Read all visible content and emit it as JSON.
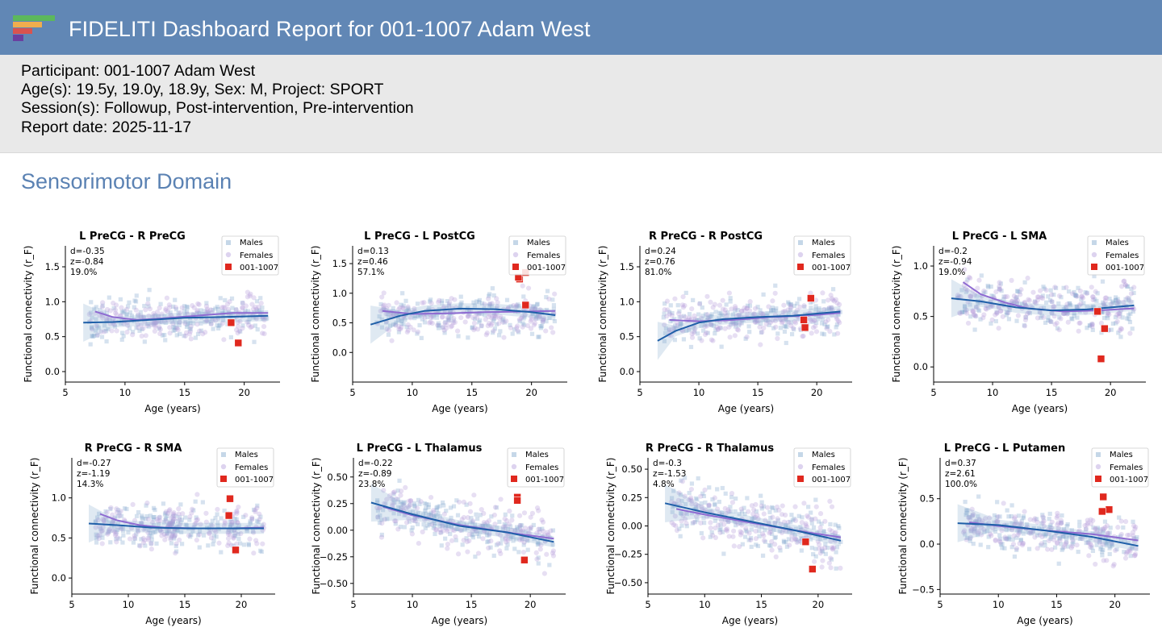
{
  "header": {
    "title": "FIDELITI Dashboard Report for 001-1007 Adam West",
    "logo_colors": [
      "#5cb85c",
      "#f0ad4e",
      "#d9534f",
      "#6a3fa0"
    ]
  },
  "participant_info": {
    "participant": "Participant: 001-1007 Adam West",
    "ages": "Age(s): 19.5y, 19.0y, 18.9y, Sex: M, Project: SPORT",
    "sessions": "Session(s): Followup, Post-intervention, Pre-intervention",
    "report_date": "Report date: 2025-11-17"
  },
  "section": {
    "title": "Sensorimotor Domain"
  },
  "legend": {
    "males": "Males",
    "females": "Females",
    "participant": "001-1007"
  },
  "colors": {
    "males": "#7ea6cc",
    "females": "#b39ddb",
    "male_line": "#1f5fa8",
    "female_line": "#8e6bd1",
    "participant": "#e0281e",
    "warn": "#e0281e"
  },
  "chart_data": [
    {
      "type": "scatter",
      "title": "L PreCG - R PreCG",
      "xlabel": "Age (years)",
      "ylabel": "Functional connectivity (r_F)",
      "xlim": [
        5,
        23
      ],
      "ylim": [
        -0.15,
        1.8
      ],
      "xticks": [
        "5",
        "10",
        "15",
        "20"
      ],
      "yticks": [
        "0.0",
        "0.5",
        "1.0",
        "1.5"
      ],
      "stats": {
        "d": "d=-0.35",
        "z": "z=-0.84",
        "pct": "19.0%",
        "pct_warn": false
      },
      "cloud": {
        "y_start": 0.75,
        "y_end": 0.8,
        "spread": 0.27
      },
      "male_fit": {
        "x": [
          6.5,
          9,
          12,
          15,
          18,
          22
        ],
        "y": [
          0.7,
          0.71,
          0.74,
          0.77,
          0.78,
          0.8
        ]
      },
      "female_fit": {
        "x": [
          7.5,
          9,
          11,
          13,
          16,
          19,
          22
        ],
        "y": [
          0.86,
          0.78,
          0.74,
          0.76,
          0.8,
          0.84,
          0.84
        ]
      },
      "participant_points": [
        {
          "x": 18.9,
          "y": 0.7
        },
        {
          "x": 19.5,
          "y": 0.41
        }
      ]
    },
    {
      "type": "scatter",
      "title": "L PreCG - L PostCG",
      "xlabel": "Age (years)",
      "ylabel": "Functional connectivity (r_F)",
      "xlim": [
        5,
        23
      ],
      "ylim": [
        -0.5,
        1.8
      ],
      "xticks": [
        "5",
        "10",
        "15",
        "20"
      ],
      "yticks": [
        "0.0",
        "0.5",
        "1.0",
        "1.5"
      ],
      "stats": {
        "d": "d=0.13",
        "z": "z=0.46",
        "pct": "57.1%",
        "pct_warn": false
      },
      "cloud": {
        "y_start": 0.6,
        "y_end": 0.65,
        "spread": 0.32
      },
      "male_fit": {
        "x": [
          6.5,
          9,
          11,
          14,
          17,
          20,
          22
        ],
        "y": [
          0.47,
          0.62,
          0.7,
          0.74,
          0.73,
          0.68,
          0.63
        ]
      },
      "female_fit": {
        "x": [
          7.5,
          10,
          13,
          16,
          19,
          22
        ],
        "y": [
          0.7,
          0.65,
          0.66,
          0.68,
          0.69,
          0.7
        ]
      },
      "participant_points": [
        {
          "x": 19.0,
          "y": 1.24
        },
        {
          "x": 18.9,
          "y": 1.27
        },
        {
          "x": 19.5,
          "y": 1.35
        },
        {
          "x": 19.5,
          "y": 0.8
        }
      ]
    },
    {
      "type": "scatter",
      "title": "R PreCG - R PostCG",
      "xlabel": "Age (years)",
      "ylabel": "Functional connectivity (r_F)",
      "xlim": [
        5,
        23
      ],
      "ylim": [
        -0.15,
        1.8
      ],
      "xticks": [
        "5",
        "10",
        "15",
        "20"
      ],
      "yticks": [
        "0.0",
        "0.5",
        "1.0",
        "1.5"
      ],
      "stats": {
        "d": "d=0.24",
        "z": "z=0.76",
        "pct": "81.0%",
        "pct_warn": false
      },
      "cloud": {
        "y_start": 0.72,
        "y_end": 0.82,
        "spread": 0.3
      },
      "male_fit": {
        "x": [
          6.5,
          8,
          10,
          12,
          15,
          18,
          22
        ],
        "y": [
          0.44,
          0.58,
          0.7,
          0.75,
          0.78,
          0.8,
          0.86
        ]
      },
      "female_fit": {
        "x": [
          7.5,
          10,
          13,
          16,
          19,
          22
        ],
        "y": [
          0.74,
          0.72,
          0.74,
          0.78,
          0.8,
          0.84
        ]
      },
      "participant_points": [
        {
          "x": 18.9,
          "y": 0.74
        },
        {
          "x": 19.0,
          "y": 0.63
        },
        {
          "x": 19.5,
          "y": 1.05
        }
      ]
    },
    {
      "type": "scatter",
      "title": "L PreCG - L SMA",
      "xlabel": "Age (years)",
      "ylabel": "Functional connectivity (r_F)",
      "xlim": [
        5,
        23
      ],
      "ylim": [
        -0.15,
        1.2
      ],
      "xticks": [
        "5",
        "10",
        "15",
        "20"
      ],
      "yticks": [
        "0.0",
        "0.5",
        "1.0"
      ],
      "stats": {
        "d": "d=-0.2",
        "z": "z=-0.94",
        "pct": "19.0%",
        "pct_warn": false
      },
      "cloud": {
        "y_start": 0.65,
        "y_end": 0.58,
        "spread": 0.23
      },
      "male_fit": {
        "x": [
          6.5,
          9,
          12,
          15,
          18,
          22
        ],
        "y": [
          0.68,
          0.65,
          0.59,
          0.56,
          0.57,
          0.61
        ]
      },
      "female_fit": {
        "x": [
          7.5,
          9,
          11,
          13,
          16,
          19,
          22
        ],
        "y": [
          0.84,
          0.72,
          0.64,
          0.58,
          0.55,
          0.56,
          0.58
        ]
      },
      "participant_points": [
        {
          "x": 18.9,
          "y": 0.55
        },
        {
          "x": 19.5,
          "y": 0.38
        },
        {
          "x": 19.2,
          "y": 0.08
        }
      ]
    },
    {
      "type": "scatter",
      "title": "R PreCG - R SMA",
      "xlabel": "Age (years)",
      "ylabel": "Functional connectivity (r_F)",
      "xlim": [
        5,
        23
      ],
      "ylim": [
        -0.2,
        1.5
      ],
      "xticks": [
        "5",
        "10",
        "15",
        "20"
      ],
      "yticks": [
        "0.0",
        "0.5",
        "1.0"
      ],
      "stats": {
        "d": "d=-0.27",
        "z": "z=-1.19",
        "pct": "14.3%",
        "pct_warn": false
      },
      "cloud": {
        "y_start": 0.66,
        "y_end": 0.62,
        "spread": 0.26
      },
      "male_fit": {
        "x": [
          6.5,
          9,
          12,
          15,
          18,
          22
        ],
        "y": [
          0.68,
          0.66,
          0.63,
          0.62,
          0.62,
          0.62
        ]
      },
      "female_fit": {
        "x": [
          7.5,
          9,
          11,
          13,
          16,
          19,
          22
        ],
        "y": [
          0.8,
          0.72,
          0.66,
          0.63,
          0.62,
          0.62,
          0.63
        ]
      },
      "participant_points": [
        {
          "x": 19.0,
          "y": 0.99
        },
        {
          "x": 18.9,
          "y": 0.78
        },
        {
          "x": 19.5,
          "y": 0.35
        }
      ]
    },
    {
      "type": "scatter",
      "title": "L PreCG - L Thalamus",
      "xlabel": "Age (years)",
      "ylabel": "Functional connectivity (r_F)",
      "xlim": [
        5,
        23
      ],
      "ylim": [
        -0.6,
        0.68
      ],
      "xticks": [
        "5",
        "10",
        "15",
        "20"
      ],
      "yticks": [
        "0.50",
        "0.25",
        "0.00",
        "−0.25",
        "−0.50"
      ],
      "stats": {
        "d": "d=-0.22",
        "z": "z=-0.89",
        "pct": "23.8%",
        "pct_warn": false
      },
      "cloud": {
        "y_start": 0.22,
        "y_end": -0.1,
        "spread": 0.22
      },
      "male_fit": {
        "x": [
          6.5,
          10,
          14,
          18,
          22
        ],
        "y": [
          0.26,
          0.15,
          0.04,
          -0.02,
          -0.11
        ]
      },
      "female_fit": {
        "x": [
          7.5,
          10,
          14,
          18,
          22
        ],
        "y": [
          0.22,
          0.14,
          0.05,
          -0.02,
          -0.08
        ]
      },
      "participant_points": [
        {
          "x": 18.9,
          "y": 0.31
        },
        {
          "x": 18.9,
          "y": 0.28
        },
        {
          "x": 19.5,
          "y": -0.28
        }
      ]
    },
    {
      "type": "scatter",
      "title": "R PreCG - R Thalamus",
      "xlabel": "Age (years)",
      "ylabel": "Functional connectivity (r_F)",
      "xlim": [
        5,
        23
      ],
      "ylim": [
        -0.6,
        0.6
      ],
      "xticks": [
        "5",
        "10",
        "15",
        "20"
      ],
      "yticks": [
        "0.50",
        "0.25",
        "0.00",
        "−0.25",
        "−0.50"
      ],
      "stats": {
        "d": "d=-0.3",
        "z": "z=-1.53",
        "pct": "4.8%",
        "pct_warn": true
      },
      "cloud": {
        "y_start": 0.18,
        "y_end": -0.12,
        "spread": 0.22
      },
      "male_fit": {
        "x": [
          6.5,
          10,
          14,
          18,
          22
        ],
        "y": [
          0.2,
          0.12,
          0.04,
          -0.04,
          -0.13
        ]
      },
      "female_fit": {
        "x": [
          7.5,
          10,
          14,
          18,
          22
        ],
        "y": [
          0.15,
          0.1,
          0.03,
          -0.04,
          -0.1
        ]
      },
      "participant_points": [
        {
          "x": 18.9,
          "y": -0.14
        },
        {
          "x": 19.5,
          "y": -0.38
        }
      ]
    },
    {
      "type": "scatter",
      "title": "L PreCG - L Putamen",
      "xlabel": "Age (years)",
      "ylabel": "Functional connectivity (r_F)",
      "xlim": [
        5,
        23
      ],
      "ylim": [
        -0.55,
        0.95
      ],
      "xticks": [
        "5",
        "10",
        "15",
        "20"
      ],
      "yticks": [
        "0.5",
        "0.0",
        "−0.5"
      ],
      "stats": {
        "d": "d=0.37",
        "z": "z=2.61",
        "pct": "100.0%",
        "pct_warn": false
      },
      "cloud": {
        "y_start": 0.22,
        "y_end": 0.0,
        "spread": 0.22
      },
      "male_fit": {
        "x": [
          6.5,
          10,
          14,
          18,
          22
        ],
        "y": [
          0.23,
          0.21,
          0.15,
          0.08,
          -0.02
        ]
      },
      "female_fit": {
        "x": [
          7.5,
          10,
          14,
          18,
          22
        ],
        "y": [
          0.24,
          0.2,
          0.15,
          0.11,
          0.04
        ]
      },
      "participant_points": [
        {
          "x": 19.0,
          "y": 0.52
        },
        {
          "x": 19.5,
          "y": 0.38
        },
        {
          "x": 18.9,
          "y": 0.36
        }
      ]
    }
  ]
}
